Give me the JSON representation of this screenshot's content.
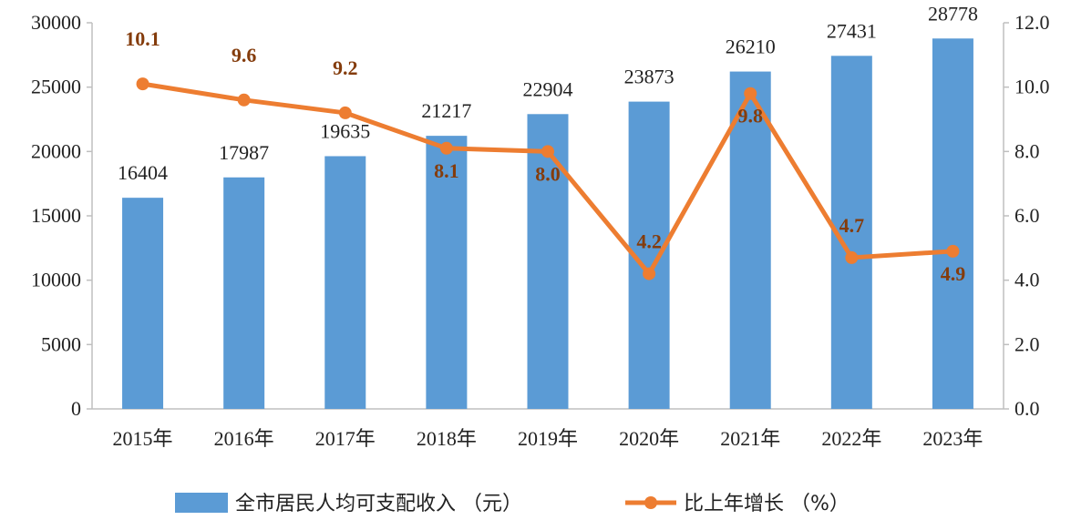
{
  "chart_data": {
    "type": "bar",
    "categories": [
      "2015年",
      "2016年",
      "2017年",
      "2018年",
      "2019年",
      "2020年",
      "2021年",
      "2022年",
      "2023年"
    ],
    "series": [
      {
        "name": "全市居民人均可支配收入（元）",
        "type": "bar",
        "axis": "left",
        "color": "#5B9BD5",
        "values": [
          16404,
          17987,
          19635,
          21217,
          22904,
          23873,
          26210,
          27431,
          28778
        ],
        "labels": [
          "16404",
          "17987",
          "19635",
          "21217",
          "22904",
          "23873",
          "26210",
          "27431",
          "28778"
        ]
      },
      {
        "name": "比上年增长（%）",
        "type": "line",
        "axis": "right",
        "color": "#ED7D31",
        "label_color": "#843C0C",
        "values": [
          10.1,
          9.6,
          9.2,
          8.1,
          8.0,
          4.2,
          9.8,
          4.7,
          4.9
        ],
        "labels": [
          "10.1",
          "9.6",
          "9.2",
          "8.1",
          "8.0",
          "4.2",
          "9.8",
          "4.7",
          "4.9"
        ]
      }
    ],
    "y_left": {
      "range": [
        0,
        30000
      ],
      "ticks": [
        "0",
        "5000",
        "10000",
        "15000",
        "20000",
        "25000",
        "30000"
      ]
    },
    "y_right": {
      "range": [
        0,
        12
      ],
      "ticks": [
        "0.0",
        "2.0",
        "4.0",
        "6.0",
        "8.0",
        "10.0",
        "12.0"
      ]
    },
    "legend": {
      "position": "bottom",
      "bar_label": "全市居民人均可支配收入 （元）",
      "line_label": "比上年增长 （%）"
    },
    "grid": false
  }
}
